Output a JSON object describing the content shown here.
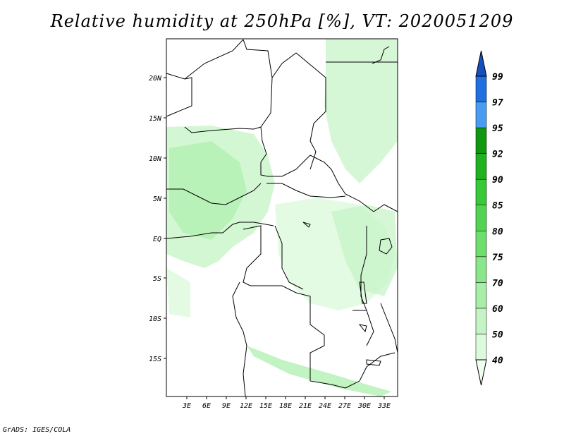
{
  "title": "Relative humidity at 250hPa [%], VT: 2020051209",
  "credit": "GrADS: IGES/COLA",
  "lat_ticks": [
    "20N",
    "15N",
    "10N",
    "5N",
    "EQ",
    "5S",
    "10S",
    "15S"
  ],
  "lon_ticks": [
    "3E",
    "6E",
    "9E",
    "12E",
    "15E",
    "18E",
    "21E",
    "24E",
    "27E",
    "30E",
    "33E"
  ],
  "colorbar": {
    "levels": [
      "40",
      "50",
      "60",
      "70",
      "75",
      "80",
      "85",
      "90",
      "92",
      "95",
      "97",
      "99"
    ],
    "colors": [
      "#f0fff0",
      "#dcfadc",
      "#c4f4c4",
      "#a8eea8",
      "#8ae68a",
      "#6ede6e",
      "#52d452",
      "#38c838",
      "#20b020",
      "#109810",
      "#4a9cf0",
      "#2070e0",
      "#1450c0"
    ]
  }
}
